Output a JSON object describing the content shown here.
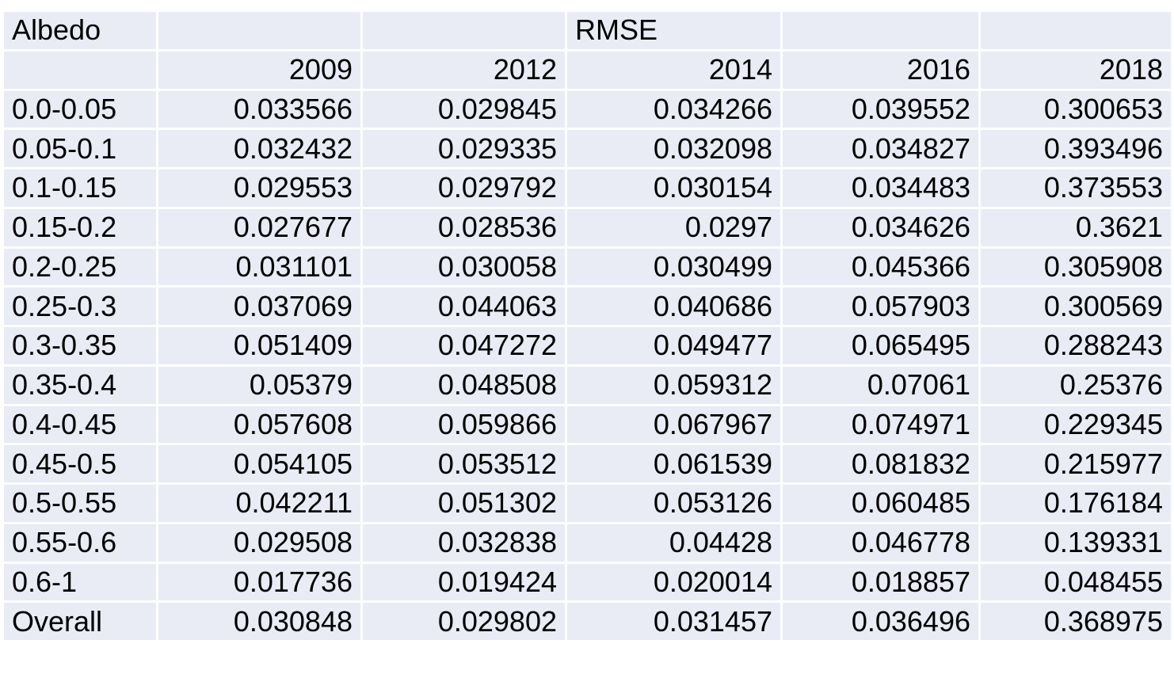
{
  "table": {
    "header_row_1": {
      "first_cell": "Albedo",
      "group_label": "RMSE"
    },
    "years": [
      "2009",
      "2012",
      "2014",
      "2016",
      "2018"
    ],
    "rows": [
      {
        "label": "0.0-0.05",
        "values": [
          "0.033566",
          "0.029845",
          "0.034266",
          "0.039552",
          "0.300653"
        ]
      },
      {
        "label": "0.05-0.1",
        "values": [
          "0.032432",
          "0.029335",
          "0.032098",
          "0.034827",
          "0.393496"
        ]
      },
      {
        "label": "0.1-0.15",
        "values": [
          "0.029553",
          "0.029792",
          "0.030154",
          "0.034483",
          "0.373553"
        ]
      },
      {
        "label": "0.15-0.2",
        "values": [
          "0.027677",
          "0.028536",
          "0.0297",
          "0.034626",
          "0.3621"
        ]
      },
      {
        "label": "0.2-0.25",
        "values": [
          "0.031101",
          "0.030058",
          "0.030499",
          "0.045366",
          "0.305908"
        ]
      },
      {
        "label": "0.25-0.3",
        "values": [
          "0.037069",
          "0.044063",
          "0.040686",
          "0.057903",
          "0.300569"
        ]
      },
      {
        "label": "0.3-0.35",
        "values": [
          "0.051409",
          "0.047272",
          "0.049477",
          "0.065495",
          "0.288243"
        ]
      },
      {
        "label": "0.35-0.4",
        "values": [
          "0.05379",
          "0.048508",
          "0.059312",
          "0.07061",
          "0.25376"
        ]
      },
      {
        "label": "0.4-0.45",
        "values": [
          "0.057608",
          "0.059866",
          "0.067967",
          "0.074971",
          "0.229345"
        ]
      },
      {
        "label": "0.45-0.5",
        "values": [
          "0.054105",
          "0.053512",
          "0.061539",
          "0.081832",
          "0.215977"
        ]
      },
      {
        "label": "0.5-0.55",
        "values": [
          "0.042211",
          "0.051302",
          "0.053126",
          "0.060485",
          "0.176184"
        ]
      },
      {
        "label": "0.55-0.6",
        "values": [
          "0.029508",
          "0.032838",
          "0.04428",
          "0.046778",
          "0.139331"
        ]
      },
      {
        "label": "0.6-1",
        "values": [
          "0.017736",
          "0.019424",
          "0.020014",
          "0.018857",
          "0.048455"
        ]
      },
      {
        "label": "Overall",
        "values": [
          "0.030848",
          "0.029802",
          "0.031457",
          "0.036496",
          "0.368975"
        ]
      }
    ],
    "colors": {
      "cell_background": "#e9ebf5",
      "grid_lines": "#ffffff",
      "text": "#000000"
    }
  }
}
